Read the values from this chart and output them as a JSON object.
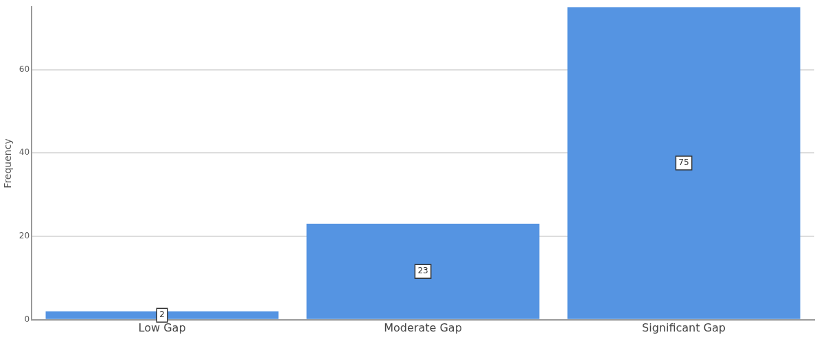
{
  "chart_data": {
    "type": "bar",
    "ylabel": "Frequency",
    "categories": [
      "Low Gap",
      "Moderate Gap",
      "Significant Gap"
    ],
    "values": [
      2,
      23,
      75
    ],
    "color": "#5594e2",
    "ylim": [
      0,
      75
    ],
    "yticks": [
      0,
      20,
      40,
      60
    ],
    "grid": "y",
    "data_labels": true,
    "legend": false
  }
}
